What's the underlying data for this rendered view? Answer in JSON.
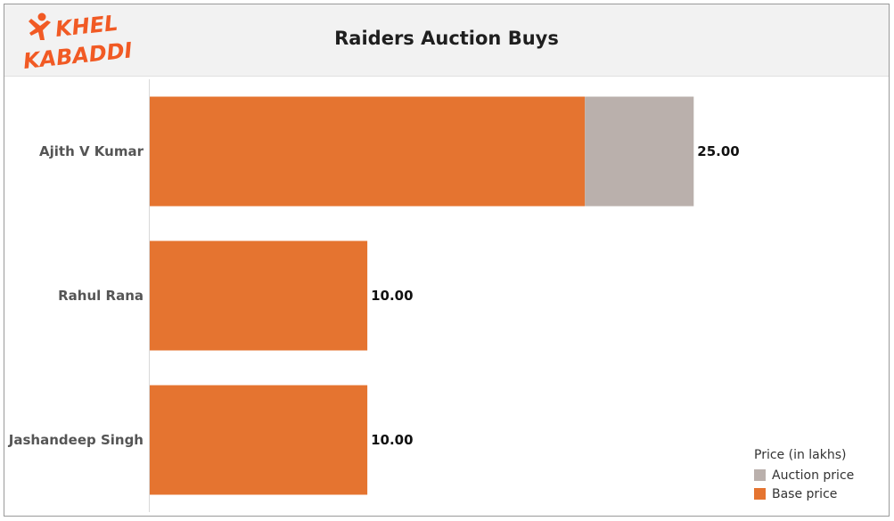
{
  "header": {
    "title": "Raiders Auction Buys",
    "logo": {
      "line1": "KHEL",
      "line2": "KABADDI"
    }
  },
  "colors": {
    "base": "#e57430",
    "auction": "#bab0ac",
    "logo": "#f15a24"
  },
  "legend": {
    "title": "Price (in lakhs)",
    "items": [
      {
        "label": "Auction price",
        "color": "#bab0ac"
      },
      {
        "label": "Base price",
        "color": "#e57430"
      }
    ]
  },
  "chart_data": {
    "type": "bar",
    "orientation": "horizontal",
    "stacked": true,
    "categories": [
      "Ajith V Kumar",
      "Rahul Rana",
      "Jashandeep Singh"
    ],
    "series": [
      {
        "name": "Base price",
        "values": [
          20,
          10,
          10
        ]
      },
      {
        "name": "Auction price",
        "values": [
          5,
          0,
          0
        ]
      }
    ],
    "totals": [
      "25.00",
      "10.00",
      "10.00"
    ],
    "xlim": [
      0,
      34
    ],
    "legend_position": "bottom-right",
    "grid": false
  }
}
